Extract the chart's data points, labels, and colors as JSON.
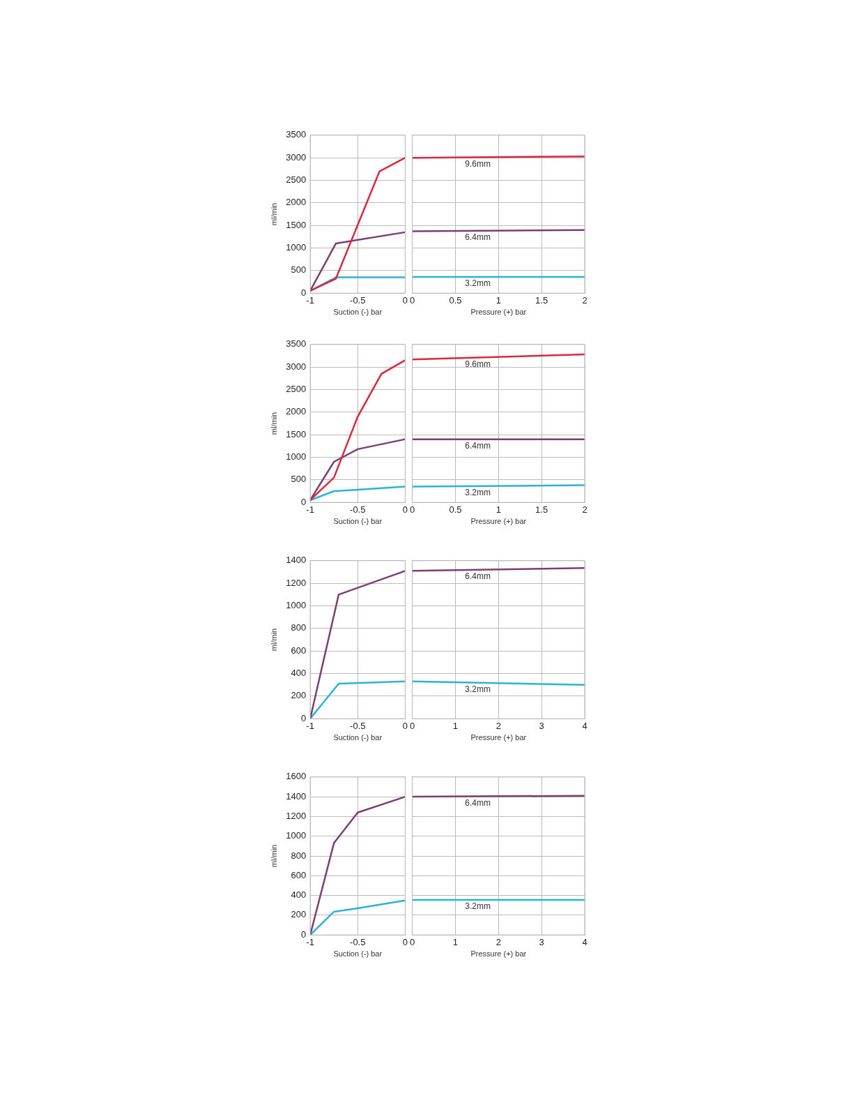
{
  "chart_data": [
    {
      "type": "line",
      "xlabel": "Suction (-) bar",
      "ylabel": "ml/min",
      "xlim": [
        -1,
        0
      ],
      "xticks": [
        -1,
        -0.5,
        0
      ],
      "ylim": [
        0,
        3500
      ],
      "yticks": [
        0,
        500,
        1000,
        1500,
        2000,
        2500,
        3000,
        3500
      ],
      "grid": true,
      "legend": false,
      "marker": "none",
      "series": [
        {
          "color": "#d8283c",
          "x": [
            -1,
            -0.73,
            -0.27,
            0
          ],
          "values": [
            50,
            320,
            2700,
            3000
          ]
        },
        {
          "color": "#7a3f6e",
          "x": [
            -1,
            -0.73,
            0
          ],
          "values": [
            50,
            1100,
            1350
          ]
        },
        {
          "color": "#29b3d8",
          "x": [
            -1,
            -0.73,
            0
          ],
          "values": [
            50,
            350,
            350
          ]
        }
      ]
    },
    {
      "type": "line",
      "xlabel": "Pressure (+) bar",
      "xlim": [
        0,
        2
      ],
      "xticks": [
        0,
        0.5,
        1,
        1.5,
        2
      ],
      "ylim": [
        0,
        3500
      ],
      "yticks": [
        0,
        500,
        1000,
        1500,
        2000,
        2500,
        3000,
        3500
      ],
      "tick_labels": "x",
      "grid": true,
      "legend": false,
      "marker": "none",
      "series": [
        {
          "name": "9.6mm",
          "color": "#d8283c",
          "x": [
            0,
            2
          ],
          "values": [
            3000,
            3030
          ]
        },
        {
          "name": "6.4mm",
          "color": "#7a3f6e",
          "x": [
            0,
            2
          ],
          "values": [
            1370,
            1400
          ]
        },
        {
          "name": "3.2mm",
          "color": "#29b3d8",
          "x": [
            0,
            2
          ],
          "values": [
            360,
            360
          ]
        }
      ]
    },
    {
      "type": "line",
      "xlabel": "Suction (-) bar",
      "ylabel": "ml/min",
      "xlim": [
        -1,
        0
      ],
      "xticks": [
        -1,
        -0.5,
        0
      ],
      "ylim": [
        0,
        3500
      ],
      "yticks": [
        0,
        500,
        1000,
        1500,
        2000,
        2500,
        3000,
        3500
      ],
      "grid": true,
      "legend": false,
      "marker": "none",
      "series": [
        {
          "color": "#d8283c",
          "x": [
            -1,
            -0.75,
            -0.5,
            -0.25,
            0
          ],
          "values": [
            50,
            550,
            1900,
            2850,
            3150
          ]
        },
        {
          "color": "#7a3f6e",
          "x": [
            -1,
            -0.75,
            -0.5,
            0
          ],
          "values": [
            50,
            900,
            1180,
            1400
          ]
        },
        {
          "color": "#29b3d8",
          "x": [
            -1,
            -0.75,
            -0.5,
            0
          ],
          "values": [
            50,
            250,
            280,
            350
          ]
        }
      ]
    },
    {
      "type": "line",
      "xlabel": "Pressure (+) bar",
      "xlim": [
        0,
        2
      ],
      "xticks": [
        0,
        0.5,
        1,
        1.5,
        2
      ],
      "ylim": [
        0,
        3500
      ],
      "yticks": [
        0,
        500,
        1000,
        1500,
        2000,
        2500,
        3000,
        3500
      ],
      "tick_labels": "x",
      "grid": true,
      "legend": false,
      "marker": "none",
      "series": [
        {
          "name": "9.6mm",
          "color": "#d8283c",
          "x": [
            0,
            2
          ],
          "values": [
            3170,
            3280
          ]
        },
        {
          "name": "6.4mm",
          "color": "#7a3f6e",
          "x": [
            0,
            2
          ],
          "values": [
            1400,
            1400
          ]
        },
        {
          "name": "3.2mm",
          "color": "#29b3d8",
          "x": [
            0,
            2
          ],
          "values": [
            350,
            380
          ]
        }
      ]
    },
    {
      "type": "line",
      "xlabel": "Suction (-) bar",
      "ylabel": "ml/min",
      "xlim": [
        -1,
        0
      ],
      "xticks": [
        -1,
        -0.5,
        0
      ],
      "ylim": [
        0,
        1400
      ],
      "yticks": [
        0,
        200,
        400,
        600,
        800,
        1000,
        1200,
        1400
      ],
      "grid": true,
      "legend": false,
      "marker": "none",
      "series": [
        {
          "color": "#7a3f6e",
          "x": [
            -1,
            -0.7,
            0
          ],
          "values": [
            0,
            1100,
            1310
          ]
        },
        {
          "color": "#29b3d8",
          "x": [
            -1,
            -0.7,
            0
          ],
          "values": [
            0,
            310,
            330
          ]
        }
      ]
    },
    {
      "type": "line",
      "xlabel": "Pressure (+) bar",
      "xlim": [
        0,
        4
      ],
      "xticks": [
        0,
        1,
        2,
        3,
        4
      ],
      "ylim": [
        0,
        1400
      ],
      "yticks": [
        0,
        200,
        400,
        600,
        800,
        1000,
        1200,
        1400
      ],
      "tick_labels": "x",
      "grid": true,
      "legend": false,
      "marker": "none",
      "series": [
        {
          "name": "6.4mm",
          "color": "#7a3f6e",
          "x": [
            0,
            4
          ],
          "values": [
            1310,
            1335
          ]
        },
        {
          "name": "3.2mm",
          "color": "#29b3d8",
          "x": [
            0,
            4
          ],
          "values": [
            330,
            300
          ]
        }
      ]
    },
    {
      "type": "line",
      "xlabel": "Suction (-) bar",
      "ylabel": "ml/min",
      "xlim": [
        -1,
        0
      ],
      "xticks": [
        -1,
        -0.5,
        0
      ],
      "ylim": [
        0,
        1600
      ],
      "yticks": [
        0,
        200,
        400,
        600,
        800,
        1000,
        1200,
        1400,
        1600
      ],
      "grid": true,
      "legend": false,
      "marker": "none",
      "series": [
        {
          "color": "#7a3f6e",
          "x": [
            -1,
            -0.75,
            -0.5,
            0
          ],
          "values": [
            0,
            930,
            1240,
            1400
          ]
        },
        {
          "color": "#29b3d8",
          "x": [
            -1,
            -0.75,
            -0.5,
            0
          ],
          "values": [
            0,
            235,
            270,
            350
          ]
        }
      ]
    },
    {
      "type": "line",
      "xlabel": "Pressure (+) bar",
      "xlim": [
        0,
        4
      ],
      "xticks": [
        0,
        1,
        2,
        3,
        4
      ],
      "ylim": [
        0,
        1600
      ],
      "yticks": [
        0,
        200,
        400,
        600,
        800,
        1000,
        1200,
        1400,
        1600
      ],
      "tick_labels": "x",
      "grid": true,
      "legend": false,
      "marker": "none",
      "series": [
        {
          "name": "6.4mm",
          "color": "#7a3f6e",
          "x": [
            0,
            4
          ],
          "values": [
            1400,
            1410
          ]
        },
        {
          "name": "3.2mm",
          "color": "#29b3d8",
          "x": [
            0,
            4
          ],
          "values": [
            355,
            355
          ]
        }
      ]
    }
  ]
}
